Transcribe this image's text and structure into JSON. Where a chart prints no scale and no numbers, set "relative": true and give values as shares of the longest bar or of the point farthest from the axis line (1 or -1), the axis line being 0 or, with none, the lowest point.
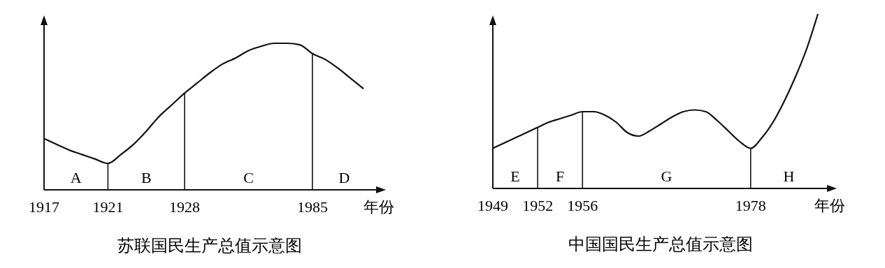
{
  "chart_data": [
    {
      "type": "line",
      "title": "苏联国民生产总值示意图",
      "xlabel": "年份",
      "relative": true,
      "tick_labels": "x",
      "categories": [
        "1917",
        null,
        null,
        null,
        null,
        "1921",
        null,
        null,
        null,
        null,
        null,
        "1928",
        null,
        null,
        null,
        null,
        null,
        null,
        null,
        null,
        null,
        "1985",
        null,
        null,
        null,
        null
      ],
      "series": [
        {
          "color": "#111111",
          "values": [
            0.35,
            0.31,
            0.27,
            0.24,
            0.21,
            0.18,
            0.24,
            0.31,
            0.4,
            0.5,
            0.58,
            0.66,
            0.73,
            0.8,
            0.86,
            0.9,
            0.95,
            0.98,
            1,
            1,
            0.99,
            0.93,
            0.89,
            0.83,
            0.76,
            0.69
          ]
        }
      ],
      "ref_lines": [
        {
          "axis": "x",
          "value": "1921"
        },
        {
          "axis": "x",
          "value": "1928"
        },
        {
          "axis": "x",
          "value": "1985"
        }
      ],
      "annotations": [
        "A",
        "B",
        "C",
        "D"
      ]
    },
    {
      "type": "line",
      "title": "中国国民生产总值示意图",
      "xlabel": "年份",
      "relative": true,
      "tick_labels": "x",
      "categories": [
        "1949",
        null,
        null,
        null,
        "1952",
        null,
        null,
        null,
        "1956",
        null,
        null,
        null,
        null,
        null,
        null,
        null,
        null,
        null,
        null,
        null,
        null,
        null,
        null,
        "1978",
        null,
        null,
        null,
        null,
        null,
        null
      ],
      "series": [
        {
          "color": "#111111",
          "values": [
            0.23,
            0.26,
            0.29,
            0.32,
            0.35,
            0.38,
            0.4,
            0.42,
            0.44,
            0.44,
            0.42,
            0.38,
            0.32,
            0.3,
            0.33,
            0.37,
            0.41,
            0.44,
            0.45,
            0.44,
            0.39,
            0.33,
            0.27,
            0.23,
            0.29,
            0.38,
            0.5,
            0.64,
            0.8,
            1
          ]
        }
      ],
      "ref_lines": [
        {
          "axis": "x",
          "value": "1952"
        },
        {
          "axis": "x",
          "value": "1956"
        },
        {
          "axis": "x",
          "value": "1978"
        }
      ],
      "annotations": [
        "E",
        "F",
        "G",
        "H"
      ]
    }
  ]
}
